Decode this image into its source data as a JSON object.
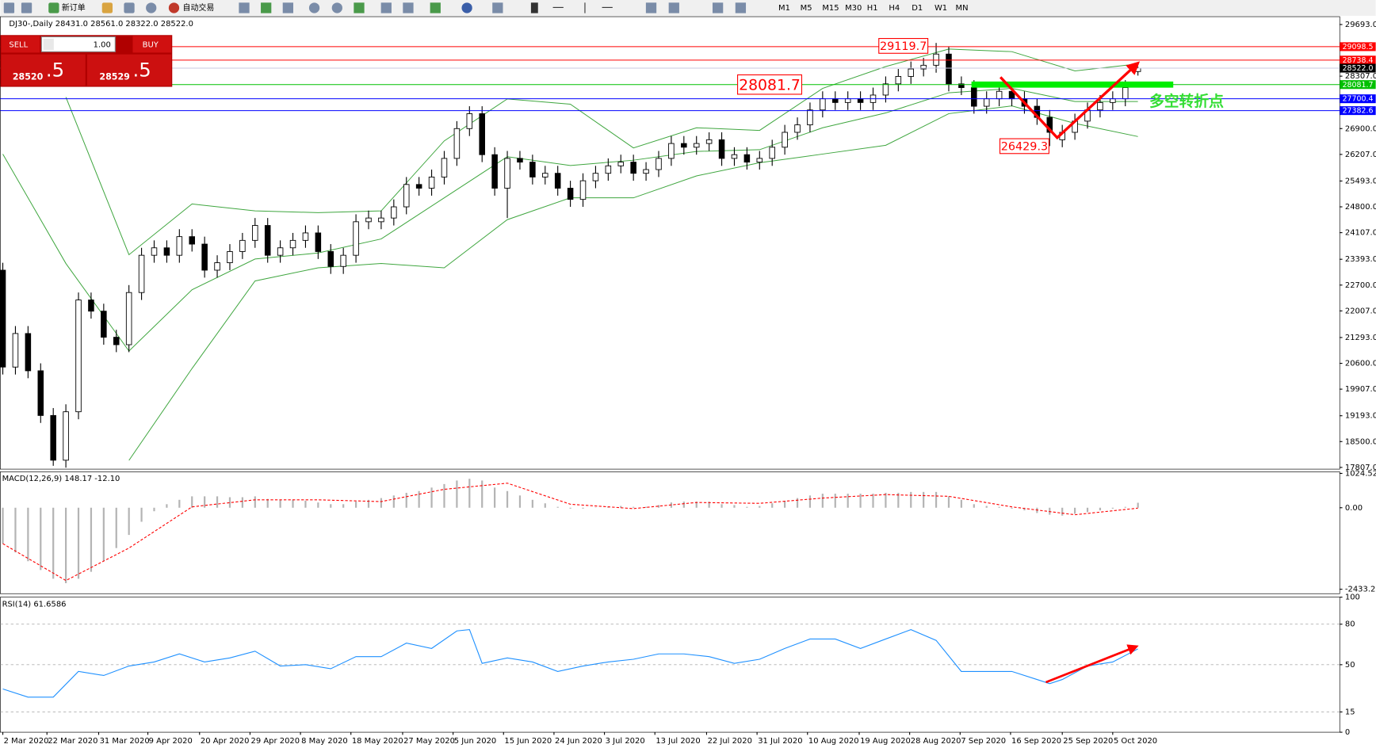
{
  "toolbar": {
    "new_order": "新订单",
    "auto_trade": "自动交易",
    "timeframes": [
      "M1",
      "M5",
      "M15",
      "M30",
      "H1",
      "H4",
      "D1",
      "W1",
      "MN"
    ]
  },
  "trade_panel": {
    "sell_label": "SELL",
    "lots": "1.00",
    "buy_label": "BUY",
    "sell_price": {
      "main": "28520",
      "big": ".5"
    },
    "buy_price": {
      "main": "28529",
      "big": ".5"
    }
  },
  "chart_data": [
    {
      "type": "candlestick",
      "header": "DJ30-,Daily  28431.0 28561.0 28322.0 28522.0",
      "xlim": [
        -0.2,
        106
      ],
      "ylim": [
        17760,
        29904
      ],
      "yticks": [
        {
          "value": 29693,
          "label": "29693.0"
        },
        {
          "value": 28307,
          "label": "28307.0"
        },
        {
          "value": 26900,
          "label": "26900.0"
        },
        {
          "value": 26207,
          "label": "26207.0"
        },
        {
          "value": 25493,
          "label": "25493.0"
        },
        {
          "value": 24800,
          "label": "24800.0"
        },
        {
          "value": 24107,
          "label": "24107.0"
        },
        {
          "value": 23393,
          "label": "23393.0"
        },
        {
          "value": 22700,
          "label": "22700.0"
        },
        {
          "value": 22007,
          "label": "22007.0"
        },
        {
          "value": 21293,
          "label": "21293.0"
        },
        {
          "value": 20600,
          "label": "20600.0"
        },
        {
          "value": 19907,
          "label": "19907.0"
        },
        {
          "value": 19193,
          "label": "19193.0"
        },
        {
          "value": 18500,
          "label": "18500.0"
        },
        {
          "value": 17807,
          "label": "17807.0"
        }
      ],
      "open": [
        23100,
        20500,
        21400,
        20400,
        19200,
        18000,
        19300,
        22300,
        22000,
        21300,
        21100,
        22500,
        23500,
        23700,
        23500,
        24000,
        23800,
        23100,
        23300,
        23600,
        23900,
        24300,
        23500,
        23700,
        23900,
        24100,
        23600,
        23200,
        23500,
        24400,
        24400,
        24500,
        24800,
        25400,
        25300,
        25600,
        26100,
        26900,
        27300,
        26200,
        25300,
        26100,
        26000,
        25600,
        25700,
        25300,
        25000,
        25500,
        25700,
        25900,
        26000,
        25700,
        25800,
        26100,
        26500,
        26400,
        26500,
        26600,
        26100,
        26200,
        26000,
        26100,
        26400,
        26800,
        27000,
        27400,
        27700,
        27600,
        27700,
        27600,
        27800,
        28100,
        28300,
        28500,
        28600,
        28900,
        28100,
        28000,
        27500,
        27700,
        27900,
        27700,
        27500,
        27200,
        26600,
        26800,
        27100,
        27400,
        27600,
        27700,
        28431
      ],
      "high": [
        23300,
        21600,
        21600,
        20600,
        19400,
        19500,
        22500,
        22500,
        22200,
        21500,
        22700,
        23700,
        23900,
        23900,
        24200,
        24200,
        24000,
        23500,
        23800,
        24100,
        24500,
        24500,
        23900,
        24100,
        24300,
        24300,
        23800,
        23700,
        24600,
        24700,
        24700,
        25000,
        25600,
        25600,
        25800,
        26300,
        27100,
        27500,
        27500,
        26400,
        26300,
        26300,
        26200,
        25900,
        25900,
        25500,
        25700,
        25900,
        26100,
        26200,
        26200,
        26000,
        26300,
        26700,
        26700,
        26700,
        26800,
        26800,
        26400,
        26400,
        26300,
        26600,
        27000,
        27200,
        27600,
        27900,
        27900,
        27900,
        27900,
        28000,
        28300,
        28500,
        28700,
        28800,
        29199,
        29100,
        28300,
        28200,
        27900,
        28100,
        28100,
        27900,
        27700,
        27400,
        27000,
        27300,
        27600,
        27800,
        27900,
        28200,
        28561
      ],
      "low": [
        20300,
        20300,
        20200,
        19000,
        17850,
        17800,
        19100,
        21800,
        21100,
        20900,
        20900,
        22300,
        23300,
        23300,
        23300,
        23600,
        22900,
        22900,
        23100,
        23400,
        23700,
        23300,
        23300,
        23500,
        23700,
        23400,
        23000,
        23000,
        23300,
        24200,
        24200,
        24300,
        24600,
        25100,
        25100,
        25400,
        25900,
        26700,
        26000,
        25100,
        24500,
        25800,
        25400,
        25400,
        25100,
        24800,
        24800,
        25300,
        25500,
        25700,
        25500,
        25500,
        25600,
        25900,
        26200,
        26200,
        26300,
        25900,
        25900,
        25800,
        25800,
        25900,
        26200,
        26600,
        26800,
        27200,
        27400,
        27400,
        27400,
        27400,
        27600,
        27900,
        28100,
        28300,
        28400,
        27900,
        27800,
        27300,
        27300,
        27500,
        27500,
        27300,
        27000,
        26429,
        26400,
        26600,
        26900,
        27200,
        27400,
        27500,
        28322
      ],
      "close": [
        20500,
        21400,
        20400,
        19200,
        18000,
        19300,
        22300,
        22000,
        21300,
        21100,
        22500,
        23500,
        23700,
        23500,
        24000,
        23800,
        23100,
        23300,
        23600,
        23900,
        24300,
        23500,
        23700,
        23900,
        24100,
        23600,
        23200,
        23500,
        24400,
        24500,
        24500,
        24800,
        25400,
        25300,
        25600,
        26100,
        26900,
        27300,
        26200,
        25300,
        26100,
        26000,
        25600,
        25700,
        25300,
        25000,
        25500,
        25700,
        25900,
        26000,
        25700,
        25800,
        26100,
        26500,
        26400,
        26500,
        26600,
        26100,
        26200,
        26000,
        26100,
        26400,
        26800,
        27000,
        27400,
        27700,
        27600,
        27700,
        27600,
        27800,
        28100,
        28300,
        28500,
        28600,
        28900,
        28100,
        28000,
        27500,
        27700,
        27900,
        27700,
        27500,
        27200,
        26800,
        26800,
        27100,
        27400,
        27600,
        27700,
        28000,
        28522
      ],
      "bands": {
        "color": "#3fa63f",
        "x": [
          0,
          5,
          10,
          15,
          20,
          25,
          30,
          35,
          40,
          45,
          50,
          55,
          60,
          65,
          70,
          75,
          80,
          85,
          90
        ],
        "upper": [
          null,
          27743,
          23515,
          24878,
          24690,
          24643,
          24690,
          26569,
          27697,
          27556,
          26381,
          26922,
          26851,
          27978,
          28565,
          29035,
          28965,
          28448,
          28636
        ],
        "middle": [
          26216,
          23280,
          20931,
          22575,
          23398,
          23562,
          23938,
          25042,
          26146,
          25911,
          26052,
          26287,
          26334,
          26921,
          27321,
          27861,
          27978,
          27626,
          27626
        ],
        "lower": [
          null,
          null,
          17995,
          20461,
          22810,
          23163,
          23280,
          23163,
          24455,
          25042,
          25042,
          25629,
          25982,
          26216,
          26451,
          27300,
          27508,
          27039,
          26687
        ]
      },
      "levels": [
        {
          "value": 29098.5,
          "color": "#ff0000"
        },
        {
          "value": 28738.4,
          "color": "#ff0000"
        },
        {
          "value": 28522,
          "label": "28522.0",
          "color": "#000000"
        },
        {
          "value": 28081.7,
          "color": "#00c000"
        },
        {
          "value": 27700.4,
          "color": "#0000ff"
        },
        {
          "value": 27382.6,
          "color": "#0000ff"
        }
      ],
      "annotations": [
        {
          "value": 29119.7,
          "x": 71.4
        },
        {
          "value": 28081.7,
          "x": 60.8
        },
        {
          "value": 26429.3,
          "x": 81.0
        }
      ],
      "note": {
        "text": "多空转折点",
        "x": 90.9,
        "y": 27621,
        "color": "#33dd33"
      },
      "trend_bar": {
        "x": [
          76.8,
          92.8
        ],
        "value": 28081.7,
        "color": "#00ee00"
      },
      "arrow": {
        "x": [
          79.1,
          83.6,
          90
        ],
        "y": [
          28280,
          26656,
          28657
        ],
        "color": "#ff0000"
      }
    },
    {
      "type": "macd",
      "header": "MACD(12,26,9) 148.17 -12.10",
      "xlim": [
        -0.2,
        106
      ],
      "ylim": [
        -2565,
        1073
      ],
      "yticks": [
        1024.52,
        {
          "value": 0,
          "label": "0.00"
        },
        -2433.25
      ],
      "histogram": {
        "color": "#b4b4b4",
        "values": [
          -1073,
          -1335,
          -1597,
          -1859,
          -2120,
          -2251,
          -2120,
          -1911,
          -1597,
          -1204,
          -812,
          -419,
          -105,
          105,
          236,
          340,
          340,
          340,
          314,
          314,
          340,
          262,
          236,
          236,
          209,
          157,
          105,
          105,
          183,
          236,
          288,
          366,
          445,
          497,
          602,
          707,
          812,
          864,
          812,
          602,
          497,
          366,
          236,
          131,
          26,
          -26,
          -26,
          10,
          26,
          52,
          26,
          26,
          79,
          157,
          183,
          183,
          183,
          105,
          79,
          26,
          52,
          131,
          209,
          288,
          366,
          419,
          419,
          419,
          419,
          419,
          445,
          445,
          471,
          471,
          471,
          340,
          236,
          105,
          52,
          26,
          -26,
          -79,
          -157,
          -209,
          -236,
          -183,
          -131,
          -79,
          -26,
          26,
          148.17
        ]
      },
      "signal": {
        "color": "#ff0000",
        "x": [
          0,
          5,
          10,
          15,
          20,
          25,
          30,
          35,
          40,
          45,
          50,
          55,
          60,
          65,
          70,
          75,
          80,
          85,
          90
        ],
        "values": [
          -1073,
          -2173,
          -1204,
          26,
          236,
          236,
          183,
          550,
          733,
          105,
          -26,
          157,
          131,
          288,
          393,
          340,
          26,
          -209,
          -12.1
        ]
      }
    },
    {
      "type": "line",
      "header": "RSI(14) 61.6586",
      "xlim": [
        -0.2,
        106
      ],
      "ylim": [
        0,
        100
      ],
      "yticks": [
        100,
        80,
        50,
        15,
        0
      ],
      "xticks": [
        {
          "value": 0,
          "label": "2 Mar 2020"
        },
        {
          "value": 3.5,
          "label": "22 Mar 2020"
        },
        {
          "value": 7.6,
          "label": "31 Mar 2020"
        },
        {
          "value": 11.5,
          "label": "9 Apr 2020"
        },
        {
          "value": 15.6,
          "label": "20 Apr 2020"
        },
        {
          "value": 19.6,
          "label": "29 Apr 2020"
        },
        {
          "value": 23.6,
          "label": "8 May 2020"
        },
        {
          "value": 27.6,
          "label": "18 May 2020"
        },
        {
          "value": 31.7,
          "label": "27 May 2020"
        },
        {
          "value": 35.7,
          "label": "5 Jun 2020"
        },
        {
          "value": 39.7,
          "label": "15 Jun 2020"
        },
        {
          "value": 43.7,
          "label": "24 Jun 2020"
        },
        {
          "value": 47.7,
          "label": "3 Jul 2020"
        },
        {
          "value": 51.7,
          "label": "13 Jul 2020"
        },
        {
          "value": 55.8,
          "label": "22 Jul 2020"
        },
        {
          "value": 59.8,
          "label": "31 Jul 2020"
        },
        {
          "value": 63.8,
          "label": "10 Aug 2020"
        },
        {
          "value": 67.9,
          "label": "19 Aug 2020"
        },
        {
          "value": 71.9,
          "label": "28 Aug 2020"
        },
        {
          "value": 75.9,
          "label": "7 Sep 2020"
        },
        {
          "value": 79.9,
          "label": "16 Sep 2020"
        },
        {
          "value": 84,
          "label": "25 Sep 2020"
        },
        {
          "value": 88,
          "label": "5 Oct 2020"
        }
      ],
      "series": [
        {
          "color": "#1e90ff",
          "x": [
            0,
            2,
            4,
            6,
            8,
            10,
            12,
            14,
            16,
            18,
            20,
            22,
            24,
            26,
            28,
            30,
            32,
            34,
            36,
            37,
            38,
            40,
            42,
            44,
            46,
            48,
            50,
            52,
            54,
            56,
            58,
            60,
            62,
            64,
            66,
            68,
            70,
            72,
            74,
            76,
            78,
            80,
            82,
            83,
            84,
            86,
            88,
            90
          ],
          "values": [
            32,
            26,
            26,
            45,
            42,
            49,
            52,
            58,
            52,
            55,
            60,
            49,
            50,
            47,
            56,
            56,
            66,
            62,
            75,
            76,
            51,
            55,
            52,
            45,
            49,
            52,
            54,
            58,
            58,
            56,
            51,
            54,
            62,
            69,
            69,
            62,
            69,
            76,
            68,
            45,
            45,
            45,
            39,
            36,
            39,
            49,
            52,
            61.6586
          ]
        }
      ],
      "arrow": {
        "x": [
          82.7,
          89.9
        ],
        "y": [
          37,
          63.6
        ],
        "color": "#ff0000"
      }
    }
  ]
}
